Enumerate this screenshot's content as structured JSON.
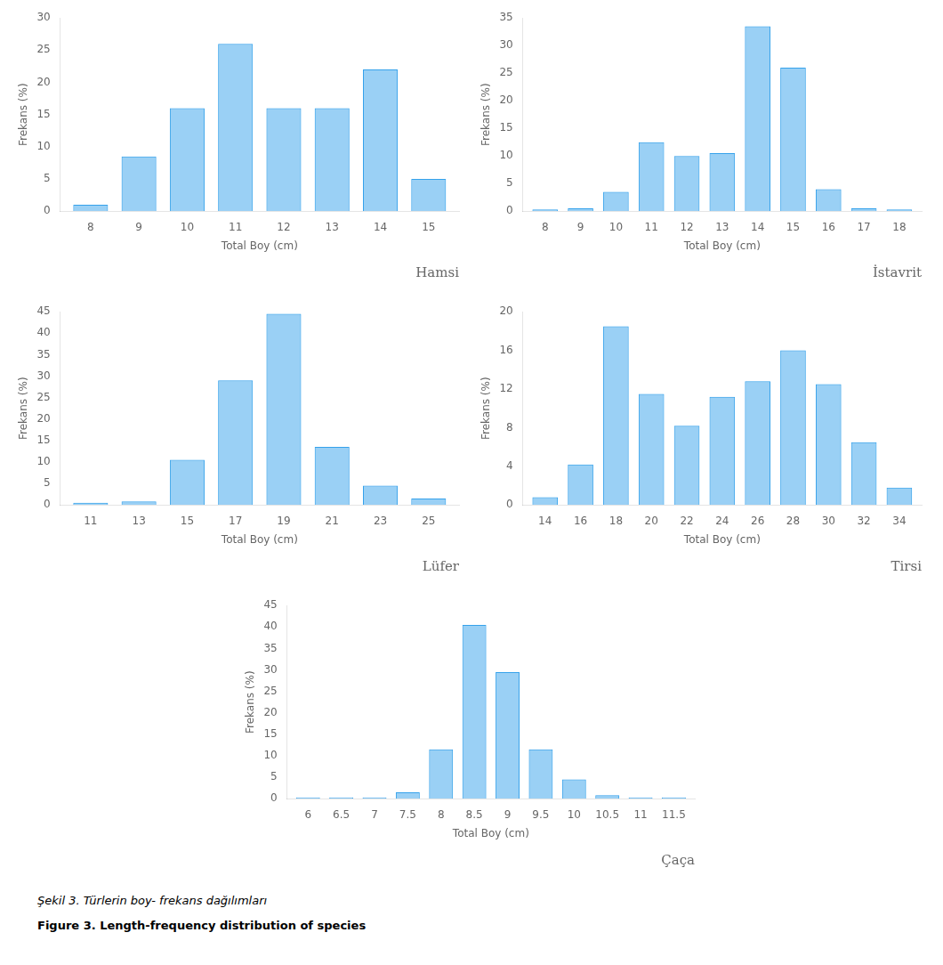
{
  "chart_data": [
    {
      "type": "bar",
      "title": "Hamsi",
      "xlabel": "Total Boy (cm)",
      "ylabel": "Frekans (%)",
      "x": [
        8,
        9,
        10,
        11,
        12,
        13,
        14,
        15
      ],
      "values": [
        1.0,
        8.5,
        16.0,
        26.0,
        16.0,
        16.0,
        22.0,
        5.0
      ],
      "xlim": [
        7.37,
        15.63
      ],
      "xticks": [
        8,
        9,
        10,
        11,
        12,
        13,
        14,
        15
      ],
      "ylim": [
        0,
        30
      ],
      "yticks": [
        0,
        5,
        10,
        15,
        20,
        25,
        30
      ],
      "grid": false
    },
    {
      "type": "bar",
      "title": "İstavrit",
      "xlabel": "Total Boy (cm)",
      "ylabel": "Frekans (%)",
      "x": [
        8,
        9,
        10,
        11,
        12,
        13,
        14,
        15,
        16,
        17,
        18
      ],
      "values": [
        0.3,
        0.5,
        3.5,
        12.5,
        10.0,
        10.5,
        33.5,
        26.0,
        4.0,
        0.5,
        0.3
      ],
      "xlim": [
        7.37,
        18.63
      ],
      "xticks": [
        8,
        9,
        10,
        11,
        12,
        13,
        14,
        15,
        16,
        17,
        18
      ],
      "ylim": [
        0,
        35
      ],
      "yticks": [
        0,
        5,
        10,
        15,
        20,
        25,
        30,
        35
      ],
      "grid": false
    },
    {
      "type": "bar",
      "title": "Lüfer",
      "xlabel": "Total Boy (cm)",
      "ylabel": "Frekans (%)",
      "x": [
        11,
        13,
        15,
        17,
        19,
        21,
        23,
        25
      ],
      "values": [
        0.5,
        0.8,
        10.5,
        29.0,
        44.5,
        13.5,
        4.5,
        1.5
      ],
      "xlim": [
        9.74,
        26.26
      ],
      "xticks": [
        11,
        13,
        15,
        17,
        19,
        21,
        23,
        25
      ],
      "ylim": [
        0,
        45
      ],
      "yticks": [
        0,
        5,
        10,
        15,
        20,
        25,
        30,
        35,
        40,
        45
      ],
      "grid": false
    },
    {
      "type": "bar",
      "title": "Tirsi",
      "xlabel": "Total Boy (cm)",
      "ylabel": "Frekans (%)",
      "x": [
        14,
        16,
        18,
        20,
        22,
        24,
        26,
        28,
        30,
        32,
        34
      ],
      "values": [
        0.8,
        4.2,
        18.5,
        11.5,
        8.2,
        11.2,
        12.8,
        16.0,
        12.5,
        6.5,
        1.8
      ],
      "xlim": [
        12.74,
        35.26
      ],
      "xticks": [
        14,
        16,
        18,
        20,
        22,
        24,
        26,
        28,
        30,
        32,
        34
      ],
      "ylim": [
        0,
        20
      ],
      "yticks": [
        0,
        4,
        8,
        12,
        16,
        20
      ],
      "grid": false
    },
    {
      "type": "bar",
      "title": "Çaça",
      "xlabel": "Total Boy (cm)",
      "ylabel": "Frekans (%)",
      "x": [
        6,
        6.5,
        7,
        7.5,
        8,
        8.5,
        9,
        9.5,
        10,
        10.5,
        11,
        11.5
      ],
      "values": [
        0.3,
        0.3,
        0.3,
        1.5,
        11.5,
        40.5,
        29.5,
        11.5,
        4.5,
        0.8,
        0.3,
        0.3
      ],
      "xlim": [
        5.685,
        11.815
      ],
      "xticks": [
        6,
        6.5,
        7,
        7.5,
        8,
        8.5,
        9,
        9.5,
        10,
        10.5,
        11,
        11.5
      ],
      "ylim": [
        0,
        45
      ],
      "yticks": [
        0,
        5,
        10,
        15,
        20,
        25,
        30,
        35,
        40,
        45
      ],
      "grid": false
    }
  ],
  "annotations": [
    "Şekil 3. Türlerin boy- frekans dağılımları",
    "Figure 3. Length-frequency distribution of species"
  ]
}
